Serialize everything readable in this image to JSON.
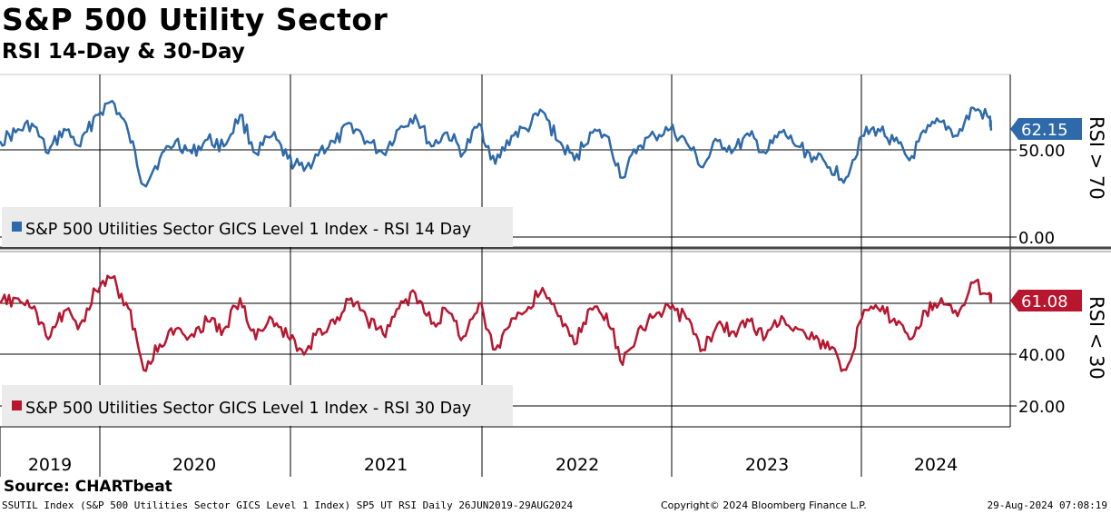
{
  "header": {
    "title": "S&P 500 Utility Sector",
    "subtitle": "RSI 14-Day & 30-Day"
  },
  "footer": {
    "source": "Source: CHARTbeat",
    "security": "SSUTIL Index (S&P 500 Utilities Sector GICS Level 1 Index) SP5 UT RSI  Daily 26JUN2019-29AUG2024",
    "copyright": "Copyright© 2024 Bloomberg Finance L.P.",
    "timestamp": "29-Aug-2024 07:08:19"
  },
  "colors": {
    "rsi14": "#2e6aa9",
    "rsi30": "#b8162f",
    "legend_bg": "#ebebeb"
  },
  "chart_data": [
    {
      "type": "line",
      "panel": "top",
      "series": [
        {
          "name": "S&P 500 Utilities Sector GICS Level 1 Index - RSI 14 Day",
          "x": [
            "2019-06-26",
            "2019-07-26",
            "2019-08-26",
            "2019-09-26",
            "2019-10-26",
            "2019-11-26",
            "2019-12-26",
            "2020-01-26",
            "2020-02-26",
            "2020-03-26",
            "2020-04-26",
            "2020-05-26",
            "2020-06-26",
            "2020-07-26",
            "2020-08-26",
            "2020-09-26",
            "2020-10-26",
            "2020-11-26",
            "2020-12-26",
            "2021-01-26",
            "2021-02-26",
            "2021-03-26",
            "2021-04-26",
            "2021-05-26",
            "2021-06-26",
            "2021-07-26",
            "2021-08-26",
            "2021-09-26",
            "2021-10-26",
            "2021-11-26",
            "2021-12-26",
            "2022-01-26",
            "2022-02-26",
            "2022-03-26",
            "2022-04-26",
            "2022-05-26",
            "2022-06-26",
            "2022-07-26",
            "2022-08-26",
            "2022-09-26",
            "2022-10-26",
            "2022-11-26",
            "2022-12-26",
            "2023-01-26",
            "2023-02-26",
            "2023-03-26",
            "2023-04-26",
            "2023-05-26",
            "2023-06-26",
            "2023-07-26",
            "2023-08-26",
            "2023-09-26",
            "2023-10-26",
            "2023-11-26",
            "2023-12-26",
            "2024-01-26",
            "2024-02-26",
            "2024-03-26",
            "2024-04-26",
            "2024-05-26",
            "2024-06-26",
            "2024-07-26",
            "2024-08-26",
            "2024-08-29"
          ],
          "values": [
            55,
            60,
            65,
            48,
            62,
            52,
            70,
            78,
            60,
            30,
            45,
            55,
            48,
            56,
            52,
            70,
            48,
            58,
            45,
            38,
            50,
            54,
            65,
            55,
            48,
            62,
            70,
            52,
            60,
            48,
            65,
            42,
            58,
            62,
            72,
            55,
            44,
            60,
            58,
            34,
            52,
            58,
            62,
            54,
            40,
            55,
            50,
            58,
            48,
            60,
            52,
            46,
            40,
            34,
            58,
            62,
            55,
            44,
            60,
            66,
            58,
            74,
            68,
            62.15
          ]
        }
      ],
      "ylim": [
        0,
        100
      ],
      "yticks": [
        "50.00",
        "0.00"
      ],
      "last_value_label": "62.15",
      "side_label": "RSI > 70"
    },
    {
      "type": "line",
      "panel": "bottom",
      "series": [
        {
          "name": "S&P 500 Utilities Sector GICS Level 1 Index - RSI 30 Day",
          "x": [
            "2019-06-26",
            "2019-07-26",
            "2019-08-26",
            "2019-09-26",
            "2019-10-26",
            "2019-11-26",
            "2019-12-26",
            "2020-01-26",
            "2020-02-26",
            "2020-03-26",
            "2020-04-26",
            "2020-05-26",
            "2020-06-26",
            "2020-07-26",
            "2020-08-26",
            "2020-09-26",
            "2020-10-26",
            "2020-11-26",
            "2020-12-26",
            "2021-01-26",
            "2021-02-26",
            "2021-03-26",
            "2021-04-26",
            "2021-05-26",
            "2021-06-26",
            "2021-07-26",
            "2021-08-26",
            "2021-09-26",
            "2021-10-26",
            "2021-11-26",
            "2021-12-26",
            "2022-01-26",
            "2022-02-26",
            "2022-03-26",
            "2022-04-26",
            "2022-05-26",
            "2022-06-26",
            "2022-07-26",
            "2022-08-26",
            "2022-09-26",
            "2022-10-26",
            "2022-11-26",
            "2022-12-26",
            "2023-01-26",
            "2023-02-26",
            "2023-03-26",
            "2023-04-26",
            "2023-05-26",
            "2023-06-26",
            "2023-07-26",
            "2023-08-26",
            "2023-09-26",
            "2023-10-26",
            "2023-11-26",
            "2023-12-26",
            "2024-01-26",
            "2024-02-26",
            "2024-03-26",
            "2024-04-26",
            "2024-05-26",
            "2024-06-26",
            "2024-07-26",
            "2024-08-26",
            "2024-08-29"
          ],
          "values": [
            60,
            62,
            58,
            46,
            57,
            52,
            65,
            70,
            58,
            34,
            44,
            50,
            48,
            53,
            50,
            62,
            46,
            54,
            47,
            40,
            50,
            52,
            62,
            54,
            48,
            58,
            64,
            52,
            57,
            47,
            60,
            42,
            54,
            57,
            66,
            55,
            44,
            58,
            56,
            36,
            50,
            55,
            58,
            54,
            42,
            52,
            49,
            53,
            47,
            55,
            50,
            46,
            42,
            34,
            54,
            58,
            54,
            46,
            57,
            62,
            55,
            68,
            64,
            61.08
          ]
        }
      ],
      "ylim": [
        10,
        80
      ],
      "yticks": [
        "40.00",
        "20.00"
      ],
      "last_value_label": "61.08",
      "side_label": "RSI < 30"
    }
  ],
  "x_axis": {
    "year_labels": [
      "2019",
      "2020",
      "2021",
      "2022",
      "2023",
      "2024"
    ]
  }
}
